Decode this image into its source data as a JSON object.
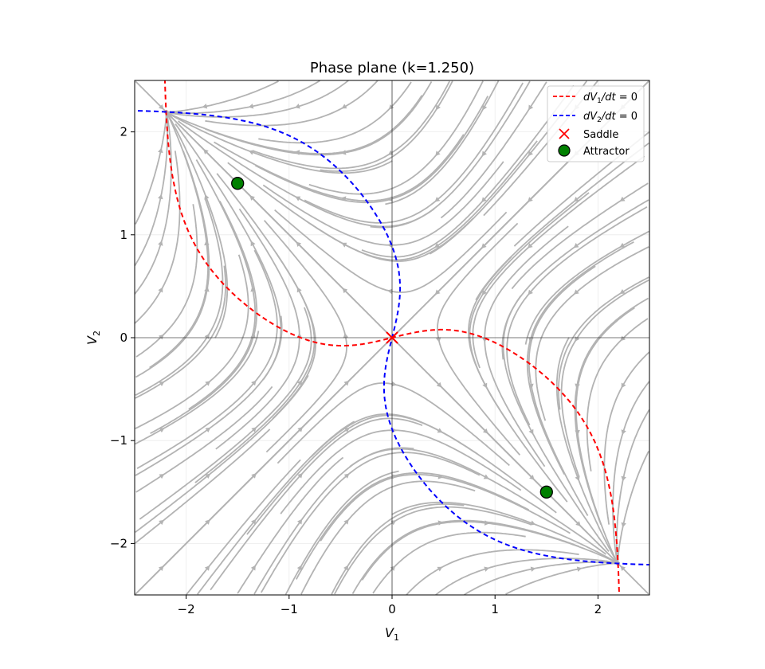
{
  "chart_data": {
    "type": "line",
    "title": "Phase plane (k=1.250)",
    "xlabel": "V_1",
    "ylabel": "V_2",
    "xlim": [
      -2.5,
      2.5
    ],
    "ylim": [
      -2.5,
      2.5
    ],
    "x_ticks": [
      -2,
      -1,
      0,
      1,
      2
    ],
    "y_ticks": [
      -2,
      -1,
      0,
      1,
      2
    ],
    "x_tick_labels": [
      "−2",
      "−1",
      "0",
      "1",
      "2"
    ],
    "y_tick_labels": [
      "−2",
      "−1",
      "0",
      "1",
      "2"
    ],
    "grid": true,
    "legend_position": "top-right",
    "k": 1.25,
    "streamplot_color": "#b3b3b3",
    "series": [
      {
        "name": "dV_1/dt = 0",
        "kind": "nullcline",
        "style": "dashed",
        "color": "#ff0000"
      },
      {
        "name": "dV_2/dt = 0",
        "kind": "nullcline",
        "style": "dashed",
        "color": "#0000ff"
      }
    ],
    "saddle": {
      "name": "Saddle",
      "points": [
        [
          0,
          0
        ]
      ],
      "color": "#ff0000",
      "marker": "x"
    },
    "attractor": {
      "name": "Attractor",
      "points": [
        [
          -1.5,
          1.5
        ],
        [
          1.5,
          -1.5
        ]
      ],
      "color": "#008000",
      "marker": "circle"
    }
  }
}
